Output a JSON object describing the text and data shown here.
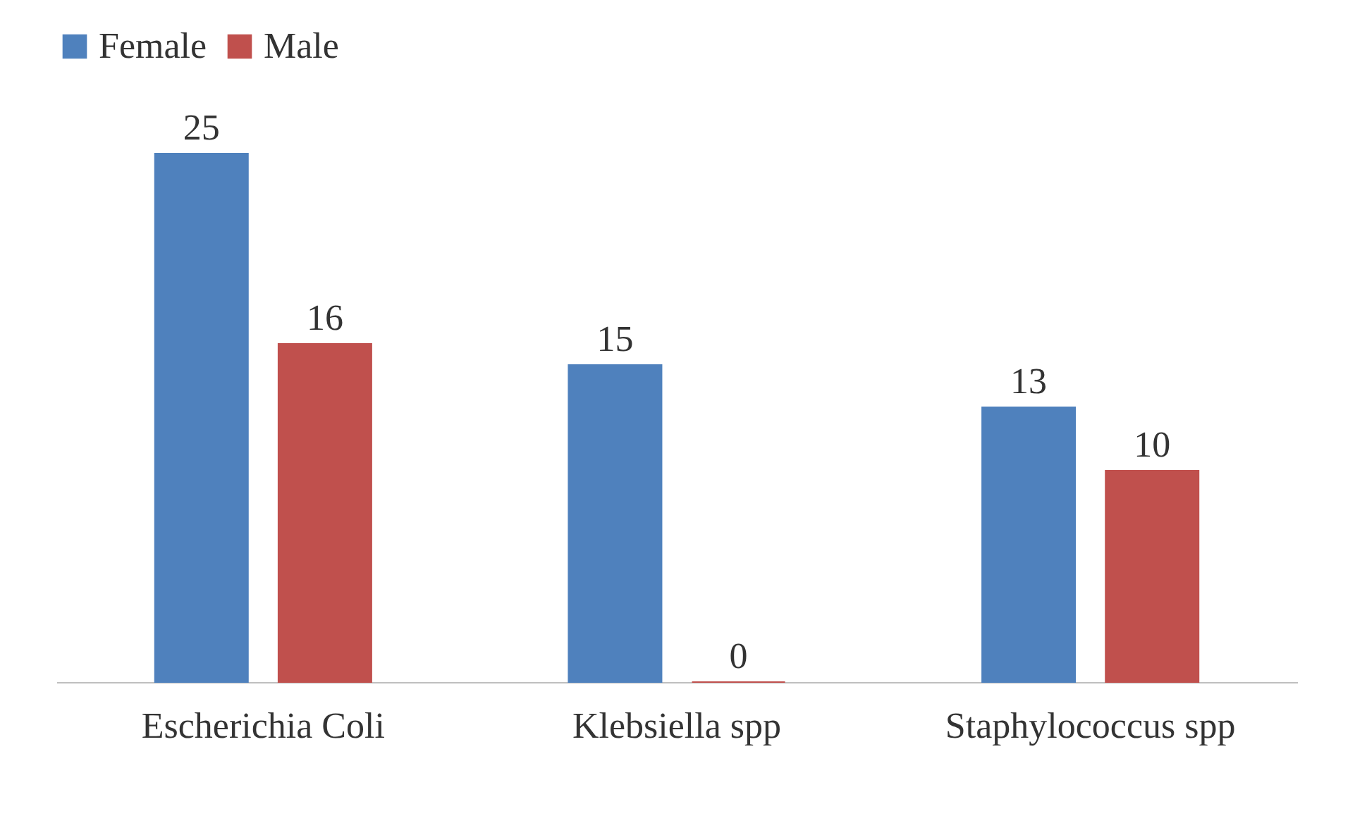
{
  "chart_data": {
    "type": "bar",
    "categories": [
      "Escherichia Coli",
      "Klebsiella spp",
      "Staphylococcus spp"
    ],
    "series": [
      {
        "name": "Female",
        "color": "#4f81bd",
        "values": [
          25,
          15,
          13
        ]
      },
      {
        "name": "Male",
        "color": "#c0504d",
        "values": [
          16,
          0,
          10
        ]
      }
    ],
    "data_labels": true,
    "legend": "top",
    "grid": false
  }
}
